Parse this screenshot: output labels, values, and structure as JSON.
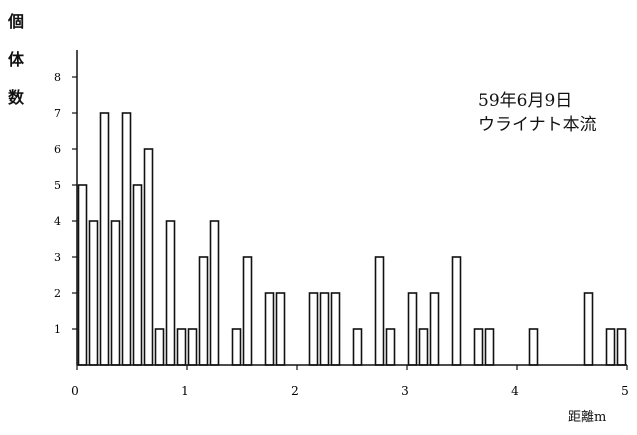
{
  "chart_data": {
    "type": "bar",
    "ylabel_chars": [
      "個",
      "体",
      "数"
    ],
    "xlabel": "距離m",
    "annotation": [
      "59年6月9日",
      "ウライナト本流"
    ],
    "xlim": [
      0,
      5
    ],
    "ylim": [
      0,
      8
    ],
    "x_ticks": [
      0,
      1,
      2,
      3,
      4,
      5
    ],
    "y_ticks": [
      1,
      2,
      3,
      4,
      5,
      6,
      7,
      8
    ],
    "bin_width": 0.1,
    "bins": [
      0,
      0.1,
      0.2,
      0.3,
      0.4,
      0.5,
      0.6,
      0.7,
      0.8,
      0.9,
      1.0,
      1.1,
      1.2,
      1.3,
      1.4,
      1.5,
      1.6,
      1.7,
      1.8,
      1.9,
      2.0,
      2.1,
      2.2,
      2.3,
      2.4,
      2.5,
      2.6,
      2.7,
      2.8,
      2.9,
      3.0,
      3.1,
      3.2,
      3.3,
      3.4,
      3.5,
      3.6,
      3.7,
      3.8,
      3.9,
      4.0,
      4.1,
      4.2,
      4.3,
      4.4,
      4.5,
      4.6,
      4.7,
      4.8,
      4.9
    ],
    "values": [
      5,
      4,
      7,
      4,
      7,
      5,
      6,
      1,
      4,
      1,
      1,
      3,
      4,
      0,
      1,
      3,
      0,
      2,
      2,
      0,
      0,
      2,
      2,
      2,
      0,
      1,
      0,
      3,
      1,
      0,
      2,
      1,
      2,
      0,
      3,
      0,
      1,
      1,
      0,
      0,
      0,
      1,
      0,
      0,
      0,
      0,
      2,
      0,
      1,
      1
    ],
    "grid": false,
    "legend": "none"
  }
}
